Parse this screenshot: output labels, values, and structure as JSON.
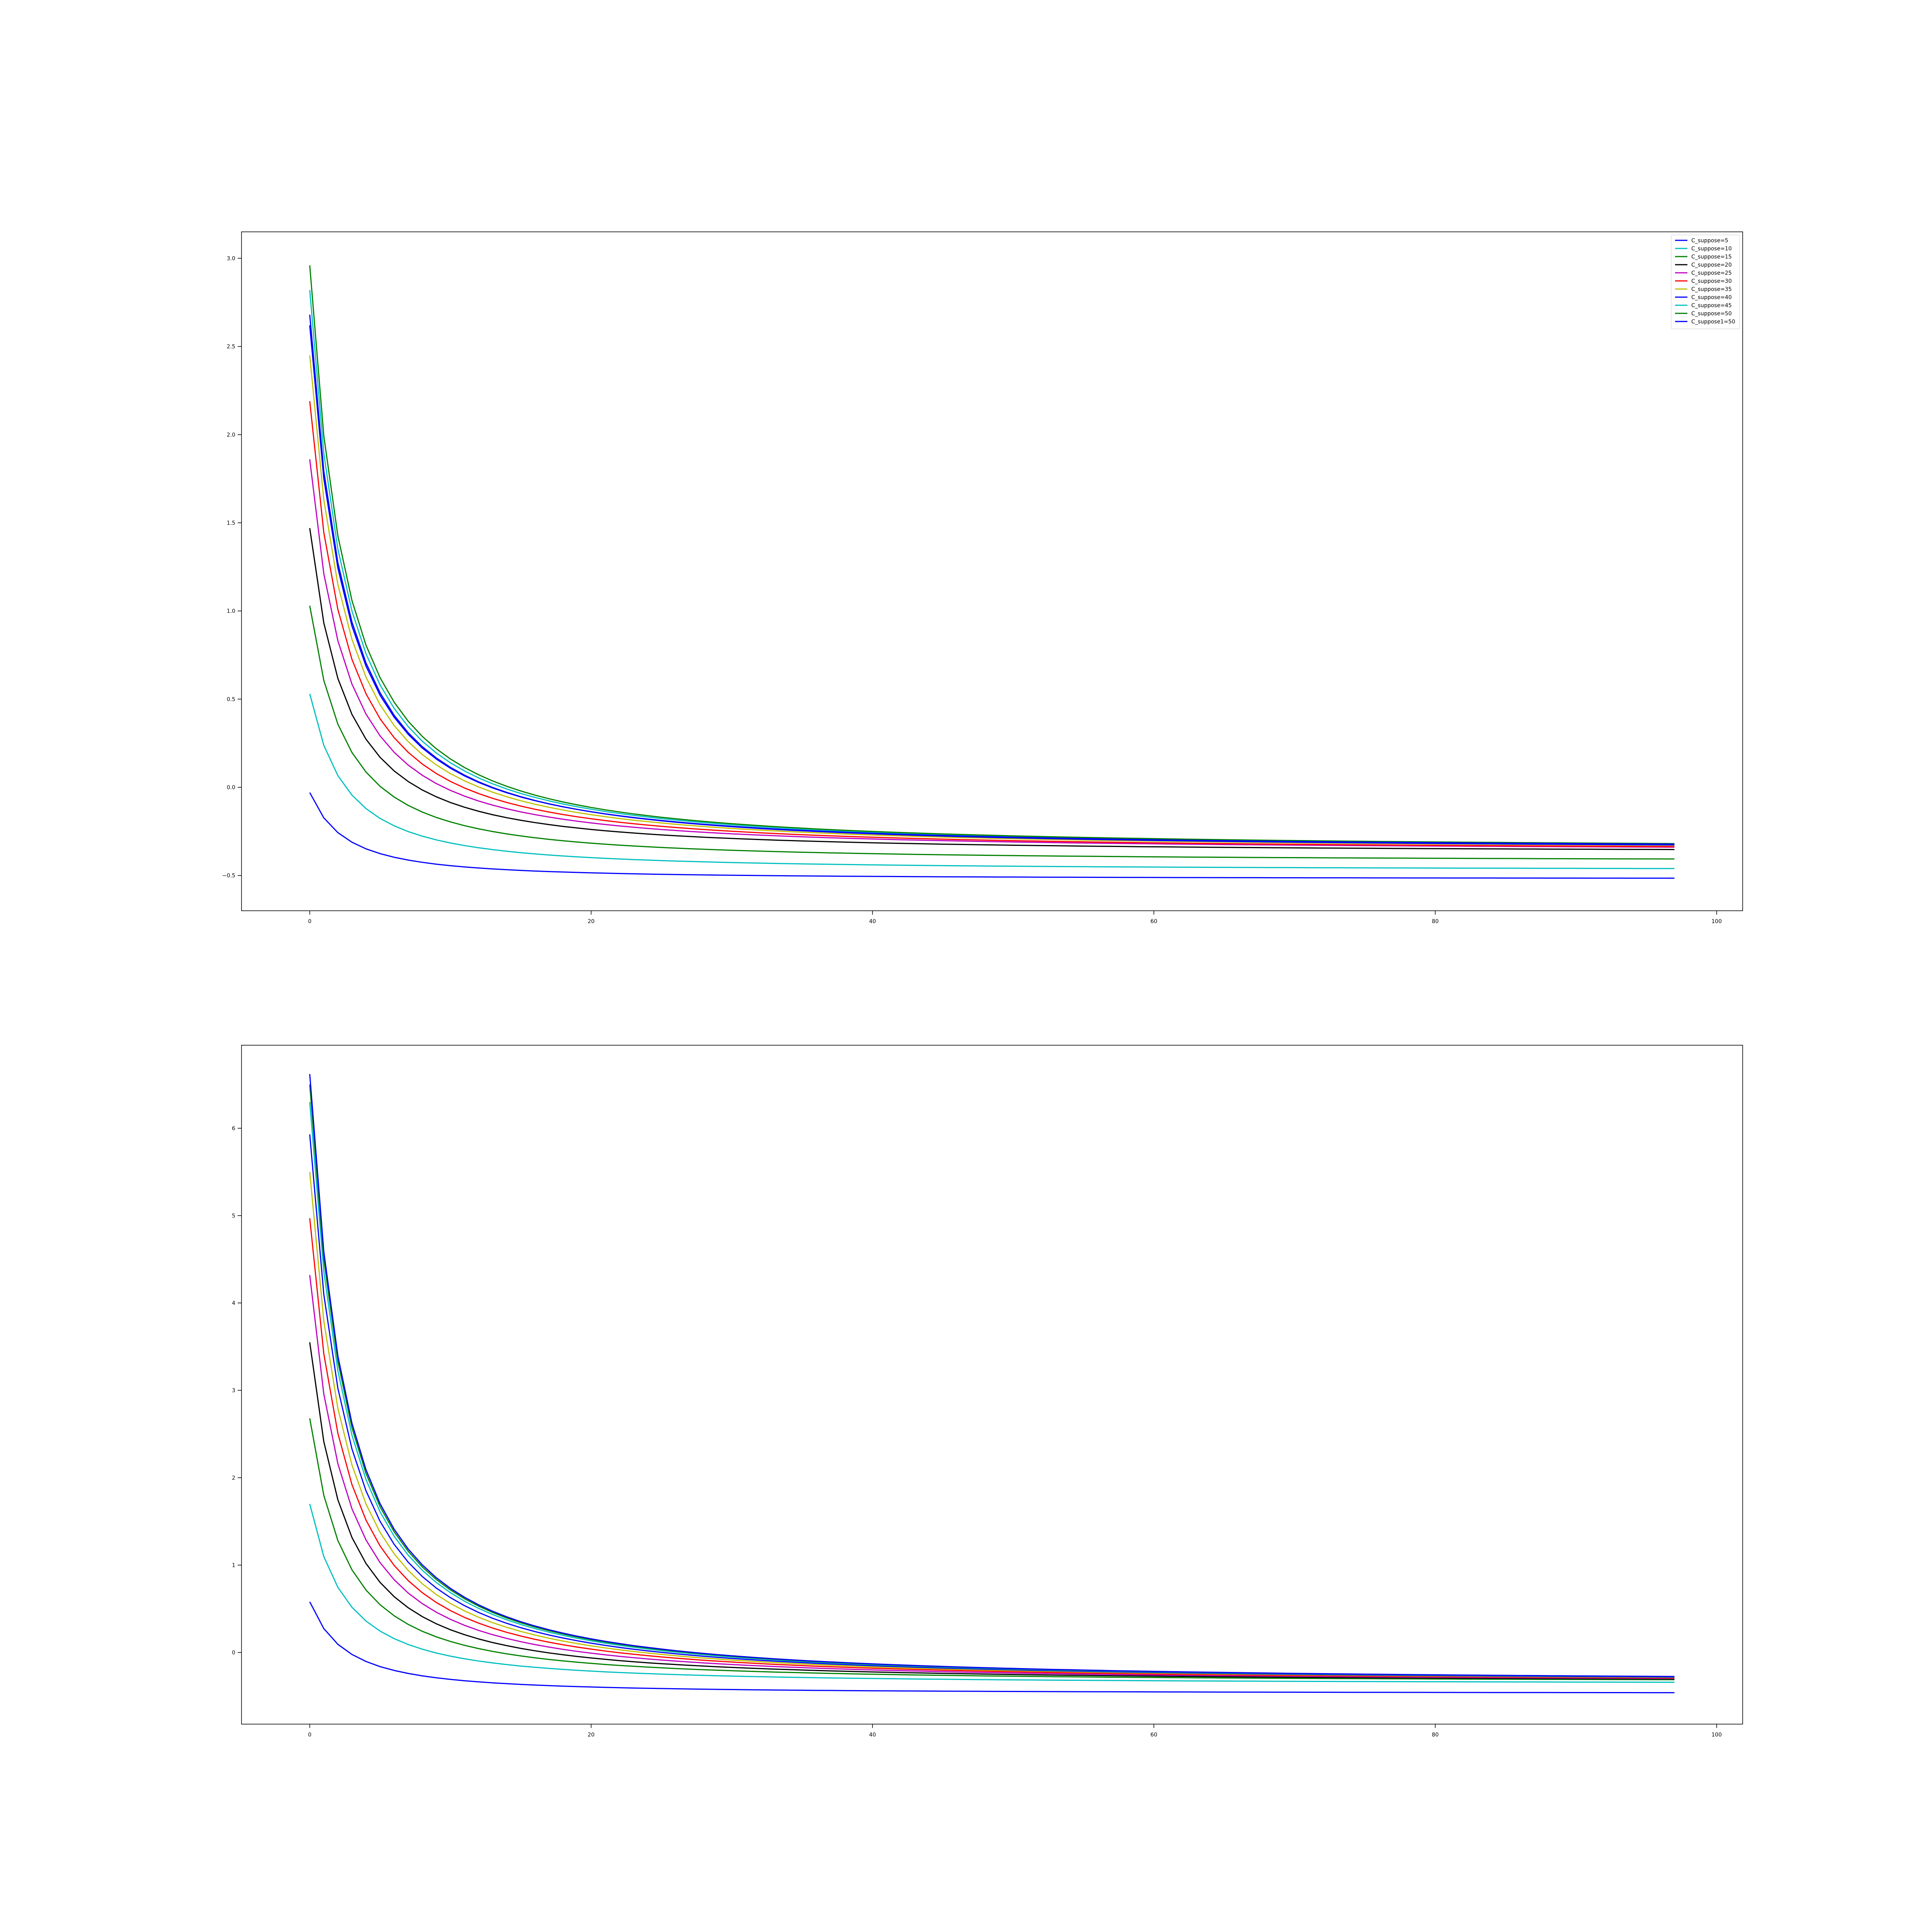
{
  "chart_data": [
    {
      "type": "line",
      "title": "",
      "xlabel": "",
      "ylabel": "",
      "xlim": [
        -4.85,
        101.85
      ],
      "ylim": [
        -0.7,
        3.15
      ],
      "x_ticks": [
        0,
        20,
        40,
        60,
        80,
        100
      ],
      "x_tick_labels": [
        "0",
        "20",
        "40",
        "60",
        "80",
        "100"
      ],
      "y_ticks": [
        -0.5,
        0.0,
        0.5,
        1.0,
        1.5,
        2.0,
        2.5,
        3.0
      ],
      "y_tick_labels": [
        "−0.5",
        "0.0",
        "0.5",
        "1.0",
        "1.5",
        "2.0",
        "2.5",
        "3.0"
      ],
      "x_range": [
        0,
        97
      ],
      "grid": false,
      "legend_position": "top-right",
      "series": [
        {
          "name": "C_suppose=5",
          "color": "#0000ff",
          "start": -0.03,
          "end": -0.52
        },
        {
          "name": "C_suppose=10",
          "color": "#00bfbf",
          "start": 0.53,
          "end": -0.47
        },
        {
          "name": "C_suppose=15",
          "color": "#008000",
          "start": 1.03,
          "end": -0.42
        },
        {
          "name": "C_suppose=20",
          "color": "#000000",
          "start": 1.47,
          "end": -0.37
        },
        {
          "name": "C_suppose=25",
          "color": "#bf00bf",
          "start": 1.86,
          "end": -0.36
        },
        {
          "name": "C_suppose=30",
          "color": "#ff0000",
          "start": 2.19,
          "end": -0.36
        },
        {
          "name": "C_suppose=35",
          "color": "#bfbf00",
          "start": 2.45,
          "end": -0.355
        },
        {
          "name": "C_suppose=40",
          "color": "#0000ff",
          "start": 2.68,
          "end": -0.355
        },
        {
          "name": "C_suppose=45",
          "color": "#00bfbf",
          "start": 2.82,
          "end": -0.35
        },
        {
          "name": "C_suppose=50",
          "color": "#008000",
          "start": 2.96,
          "end": -0.35
        },
        {
          "name": "C_suppose1=50",
          "color": "#0000ff",
          "start": 2.62,
          "end": -0.35
        }
      ]
    },
    {
      "type": "line",
      "title": "",
      "xlabel": "",
      "ylabel": "",
      "xlim": [
        -4.85,
        101.85
      ],
      "ylim": [
        -0.82,
        6.95
      ],
      "x_ticks": [
        0,
        20,
        40,
        60,
        80,
        100
      ],
      "x_tick_labels": [
        "0",
        "20",
        "40",
        "60",
        "80",
        "100"
      ],
      "y_ticks": [
        0,
        1,
        2,
        3,
        4,
        5,
        6
      ],
      "y_tick_labels": [
        "0",
        "1",
        "2",
        "3",
        "4",
        "5",
        "6"
      ],
      "x_range": [
        0,
        97
      ],
      "grid": false,
      "legend_position": "none",
      "series": [
        {
          "color": "#0000ff",
          "start": 0.58,
          "end": -0.47
        },
        {
          "color": "#00bfbf",
          "start": 1.7,
          "end": -0.36
        },
        {
          "color": "#008000",
          "start": 2.68,
          "end": -0.34
        },
        {
          "color": "#000000",
          "start": 3.55,
          "end": -0.34
        },
        {
          "color": "#bf00bf",
          "start": 4.32,
          "end": -0.34
        },
        {
          "color": "#ff0000",
          "start": 4.97,
          "end": -0.34
        },
        {
          "color": "#bfbf00",
          "start": 5.5,
          "end": -0.34
        },
        {
          "color": "#0000ff",
          "start": 5.93,
          "end": -0.34
        },
        {
          "color": "#00bfbf",
          "start": 6.3,
          "end": -0.34
        },
        {
          "color": "#008000",
          "start": 6.5,
          "end": -0.34
        },
        {
          "color": "#0000ff",
          "start": 6.62,
          "end": -0.34
        }
      ]
    }
  ]
}
